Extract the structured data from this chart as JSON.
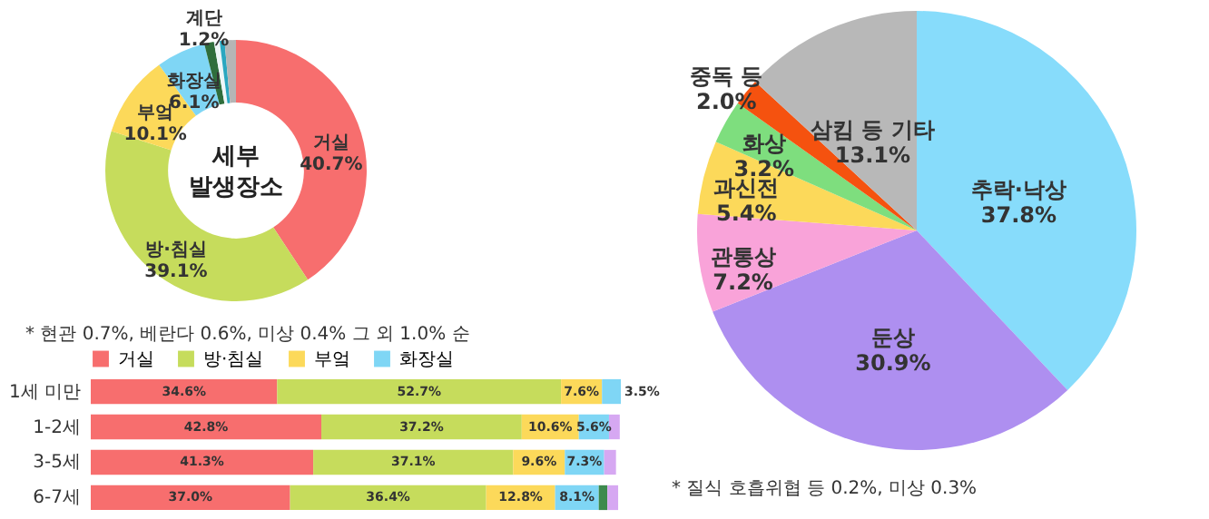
{
  "chart_data": [
    {
      "type": "donut",
      "title": "세부 발생장소",
      "categories": [
        "거실",
        "방·침실",
        "부엌",
        "화장실",
        "계단",
        null,
        null,
        null
      ],
      "values": [
        40.7,
        39.1,
        10.1,
        6.1,
        1.2,
        0.7,
        0.6,
        1.4
      ],
      "colors": [
        "#f76e6e",
        "#c6dc5c",
        "#fcd95a",
        "#7fd6f5",
        "#2f6e3c",
        "#eef6f8",
        "#2aa7c0",
        "#b5b5b5"
      ],
      "value_labels": [
        "40.7%",
        "39.1%",
        "10.1%",
        "6.1%",
        "1.2%",
        null,
        null,
        null
      ],
      "annotations": [
        "* 현관 0.7%, 베란다 0.6%, 미상 0.4% 그 외 1.0% 순"
      ]
    },
    {
      "type": "bar",
      "orientation": "horizontal",
      "stacked": true,
      "categories": [
        "1세 미만",
        "1-2세",
        "3-5세",
        "6-7세"
      ],
      "tick_labels": "y",
      "legend": "top",
      "series": [
        {
          "name": "거실",
          "color": "#f76e6e",
          "values": [
            34.6,
            42.8,
            41.3,
            37.0
          ],
          "value_labels": [
            "34.6%",
            "42.8%",
            "41.3%",
            "37.0%"
          ]
        },
        {
          "name": "방·침실",
          "color": "#c6dc5c",
          "values": [
            52.7,
            37.2,
            37.1,
            36.4
          ],
          "value_labels": [
            "52.7%",
            "37.2%",
            "37.1%",
            "36.4%"
          ]
        },
        {
          "name": "부엌",
          "color": "#fcd95a",
          "values": [
            7.6,
            10.6,
            9.6,
            12.8
          ],
          "value_labels": [
            "7.6%",
            "10.6%",
            "9.6%",
            "12.8%"
          ]
        },
        {
          "name": "화장실",
          "color": "#7fd6f5",
          "values": [
            3.5,
            5.6,
            7.3,
            8.1
          ],
          "value_labels": [
            "3.5%",
            "5.6%",
            "7.3%",
            "8.1%"
          ]
        },
        {
          "color": "#3d8a4e",
          "values": [
            null,
            null,
            null,
            1.6
          ]
        },
        {
          "color": "#d6a8f2",
          "values": [
            null,
            2.0,
            2.2,
            2.0
          ]
        }
      ]
    },
    {
      "type": "pie",
      "categories": [
        "추락·낙상",
        "둔상",
        "관통상",
        "과신전",
        "화상",
        "중독 등",
        "삼킴 등 기타"
      ],
      "values": [
        37.8,
        30.9,
        7.2,
        5.4,
        3.2,
        2.0,
        13.1
      ],
      "colors": [
        "#87dcfb",
        "#ae8ff0",
        "#f9a3d9",
        "#fcd95a",
        "#7ede7e",
        "#f5520f",
        "#b8b8b8"
      ],
      "value_labels": [
        "37.8%",
        "30.9%",
        "7.2%",
        "5.4%",
        "3.2%",
        "2.0%",
        "13.1%"
      ],
      "annotations": [
        "* 질식 호흡위협 등 0.2%, 미상 0.3%"
      ]
    }
  ]
}
